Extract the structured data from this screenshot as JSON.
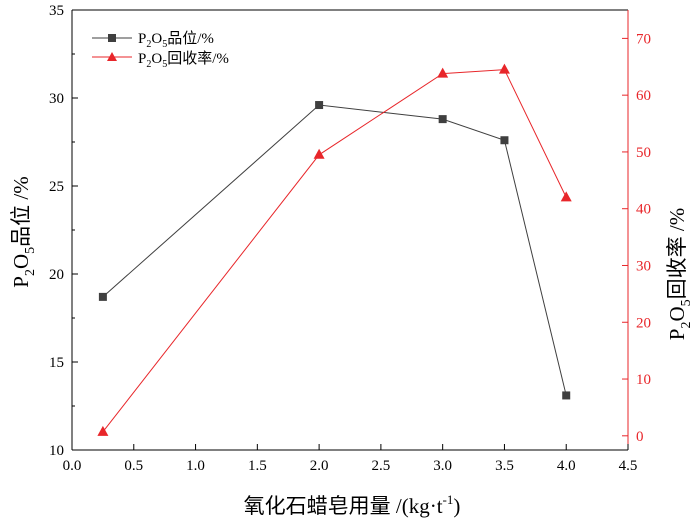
{
  "colors": {
    "axis": "#000000",
    "grade_series": "#3f3f3f",
    "recovery_series": "#e8262a",
    "right_axis": "#e8262a"
  },
  "chart_data": {
    "type": "line",
    "title": "",
    "xlabel": "氧化石蜡皂用量 /(kg·t-1)",
    "xlabel_parts": {
      "main": "氧化石蜡皂用量 /(kg·t",
      "sup": "-1",
      "tail": ")"
    },
    "ylabel": "P2O5品位 /%",
    "ylabel_parts": {
      "p": "P",
      "sub2": "2",
      "o": "O",
      "sub5": "5",
      "rest": "品位 /%"
    },
    "y2label": "P2O5回收率 /%",
    "y2label_parts": {
      "p": "P",
      "sub2": "2",
      "o": "O",
      "sub5": "5",
      "rest": "回收率 /%"
    },
    "xlim": [
      0.0,
      4.5
    ],
    "ylim": [
      10,
      35
    ],
    "y2lim": [
      -2.5,
      75
    ],
    "x_ticks": [
      "0.0",
      "0.5",
      "1.0",
      "1.5",
      "2.0",
      "2.5",
      "3.0",
      "3.5",
      "4.0",
      "4.5"
    ],
    "y_ticks": [
      "10",
      "15",
      "20",
      "25",
      "30",
      "35"
    ],
    "y2_ticks": [
      "0",
      "10",
      "20",
      "30",
      "40",
      "50",
      "60",
      "70"
    ],
    "legend_position": "top-left",
    "series": [
      {
        "name": "P2O5品位/%",
        "legend_parts": {
          "p": "P",
          "sub2": "2",
          "o": "O",
          "sub5": "5",
          "rest": "品位/%"
        },
        "axis": "left",
        "marker": "square",
        "x": [
          0.25,
          2.0,
          3.0,
          3.5,
          4.0
        ],
        "values": [
          18.7,
          29.6,
          28.8,
          27.6,
          13.1
        ]
      },
      {
        "name": "P2O5回收率/%",
        "legend_parts": {
          "p": "P",
          "sub2": "2",
          "o": "O",
          "sub5": "5",
          "rest": "回收率/%"
        },
        "axis": "right",
        "marker": "triangle",
        "x": [
          0.25,
          2.0,
          3.0,
          3.5,
          4.0
        ],
        "values": [
          0.7,
          49.5,
          63.8,
          64.5,
          42.0
        ]
      }
    ]
  }
}
